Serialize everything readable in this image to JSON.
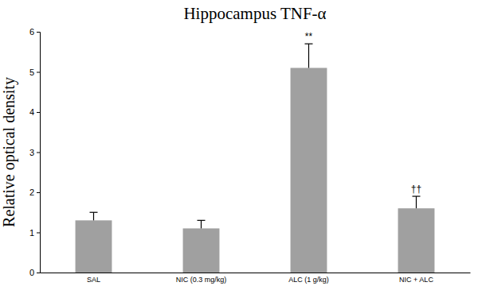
{
  "chart_data": {
    "type": "bar",
    "title": "Hippocampus TNF-α",
    "y_label": "Relative optical density",
    "categories": [
      "SAL",
      "NIC (0.3 mg/kg)",
      "ALC (1 g/kg)",
      "NIC + ALC"
    ],
    "values": [
      1.3,
      1.1,
      5.1,
      1.6
    ],
    "errors": [
      0.2,
      0.2,
      0.6,
      0.3
    ],
    "annotations": [
      null,
      null,
      "**",
      "††"
    ],
    "color": "#a0a0a0",
    "ylim": [
      0,
      6
    ],
    "yticks": [
      0,
      1,
      2,
      3,
      4,
      5,
      6
    ],
    "grid": false
  }
}
